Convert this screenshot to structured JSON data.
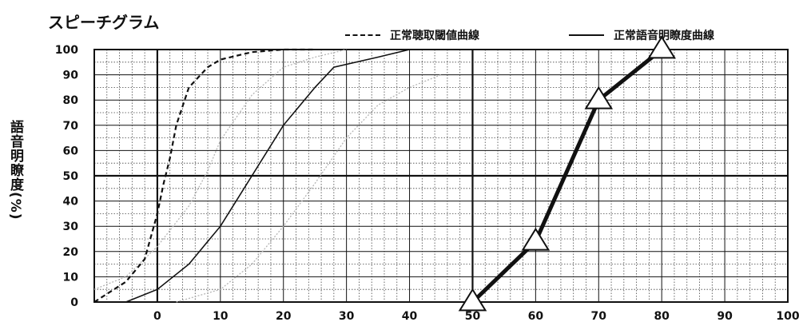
{
  "chart_data": {
    "type": "line",
    "title": "スピーチグラム",
    "xlabel": "",
    "ylabel": "語音明瞭度(%)",
    "xlim": [
      -10,
      100
    ],
    "ylim": [
      0,
      100
    ],
    "x_ticks": [
      0,
      10,
      20,
      30,
      40,
      50,
      60,
      70,
      80,
      90,
      100
    ],
    "y_ticks": [
      0,
      10,
      20,
      30,
      40,
      50,
      60,
      70,
      80,
      90,
      100
    ],
    "grid": true,
    "legend_position": "top-right",
    "legend": [
      {
        "label": "正常聴取閾値曲線",
        "style": "dashed"
      },
      {
        "label": "正常語音明瞭度曲線",
        "style": "solid"
      }
    ],
    "series": [
      {
        "name": "正常聴取閾値曲線",
        "style": "dashed",
        "x": [
          -10,
          -5,
          -2,
          0,
          1,
          2,
          3,
          5,
          8,
          10,
          15,
          20,
          25
        ],
        "y": [
          0,
          8,
          17,
          35,
          47,
          57,
          70,
          85,
          93,
          96,
          99,
          100,
          100
        ]
      },
      {
        "name": "正常語音明瞭度曲線",
        "style": "solid",
        "x": [
          -5,
          0,
          5,
          10,
          15,
          20,
          25,
          28,
          35,
          40
        ],
        "y": [
          0,
          5,
          15,
          30,
          50,
          70,
          85,
          93,
          97,
          100
        ]
      },
      {
        "style": "dotted-gray",
        "x": [
          -10,
          -5,
          0,
          5,
          8,
          10,
          15,
          20,
          25,
          30
        ],
        "y": [
          5,
          10,
          22,
          38,
          52,
          64,
          82,
          93,
          97,
          100
        ]
      },
      {
        "style": "dotted-gray",
        "x": [
          3,
          10,
          15,
          20,
          25,
          30,
          35,
          40,
          45
        ],
        "y": [
          0,
          5,
          15,
          30,
          47,
          65,
          78,
          85,
          90
        ]
      },
      {
        "style": "thick-markers",
        "x": [
          50,
          60,
          70,
          80
        ],
        "y": [
          0,
          24,
          80,
          100
        ]
      }
    ],
    "colors": {
      "line": "#111111",
      "gray": "#b5b5b5"
    }
  }
}
